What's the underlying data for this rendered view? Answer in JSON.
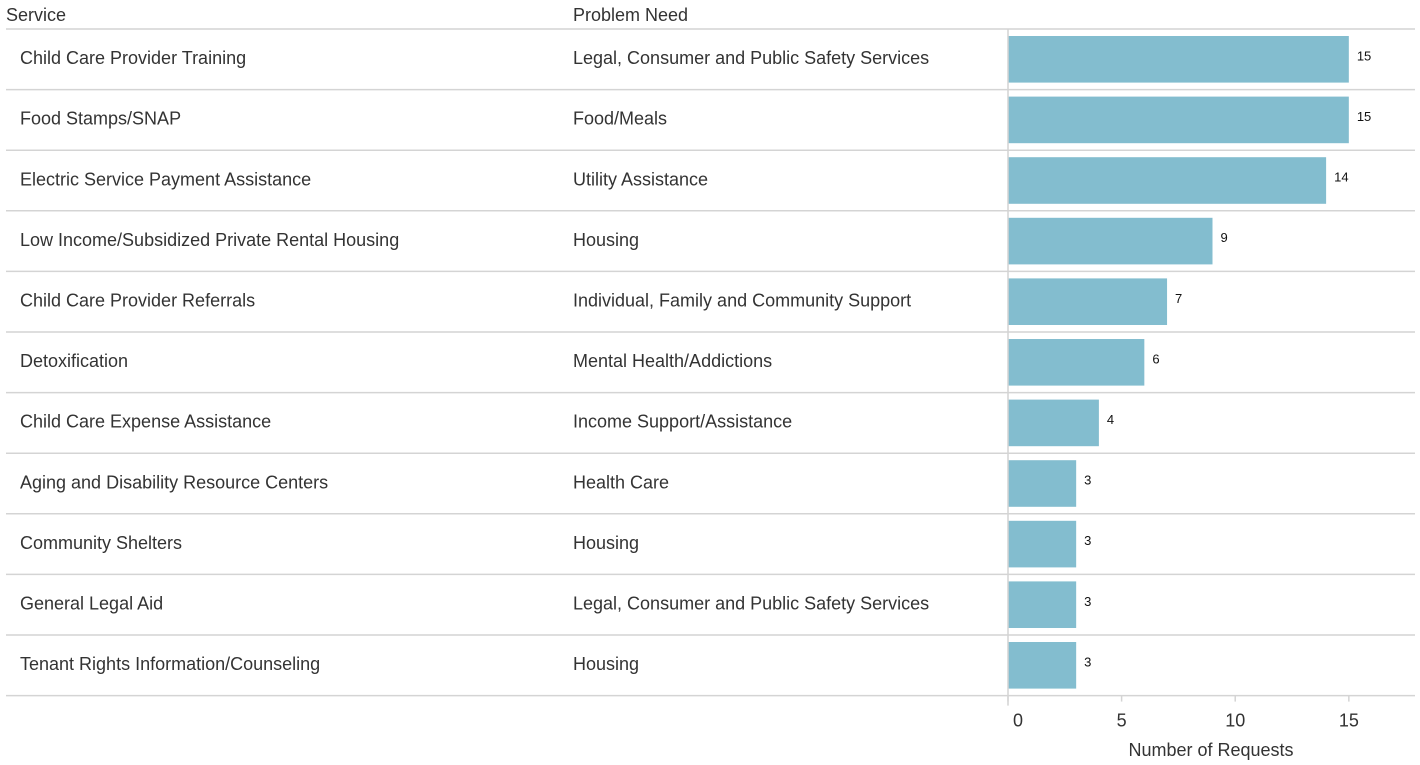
{
  "chart_data": {
    "type": "bar",
    "column_headers": [
      "Service",
      "Problem Need"
    ],
    "categories": [
      "Child Care Provider Training",
      "Food Stamps/SNAP",
      "Electric Service Payment Assistance",
      "Low Income/Subsidized Private Rental Housing",
      "Child Care Provider Referrals",
      "Detoxification",
      "Child Care Expense Assistance",
      "Aging and Disability Resource Centers",
      "Community Shelters",
      "General Legal Aid",
      "Tenant Rights Information/Counseling"
    ],
    "problem_need": [
      "Legal, Consumer and Public Safety Services",
      "Food/Meals",
      "Utility Assistance",
      "Housing",
      "Individual, Family and Community Support",
      "Mental Health/Addictions",
      "Income Support/Assistance",
      "Health Care",
      "Housing",
      "Legal, Consumer and Public Safety Services",
      "Housing"
    ],
    "values": [
      15,
      15,
      14,
      9,
      7,
      6,
      4,
      3,
      3,
      3,
      3
    ],
    "color": "#83bdcf",
    "xlim": [
      0,
      18
    ],
    "xticks": [
      0,
      5,
      10,
      15
    ],
    "xlabel": "Number of Requests"
  }
}
